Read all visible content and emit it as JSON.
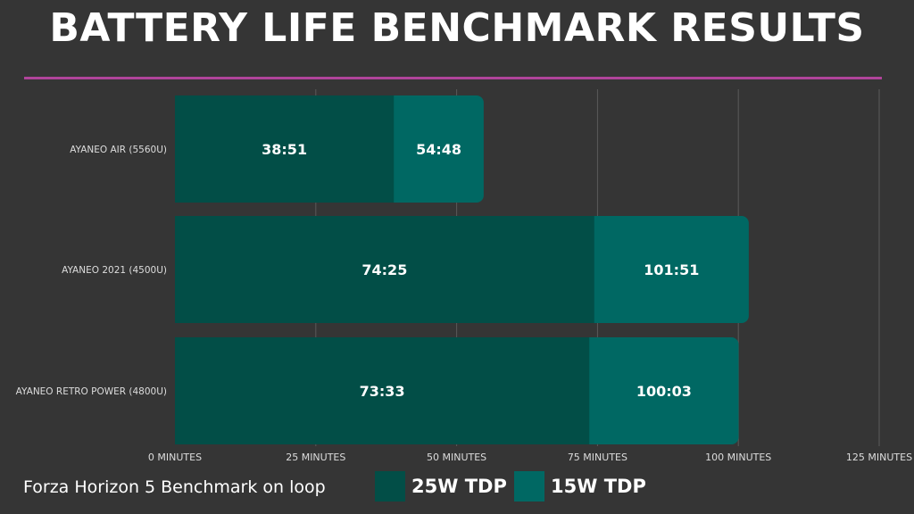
{
  "title": "BATTERY LIFE BENCHMARK RESULTS",
  "footer_note": "Forza Horizon 5 Benchmark on loop",
  "colors": {
    "background": "#353535",
    "accent_rule": "#b0449a",
    "series_25w": "#024e47",
    "series_15w": "#006863",
    "grid": "#5a5a5a",
    "text": "#ffffff",
    "axis_text": "#dddddd"
  },
  "legend": [
    {
      "label": "25W TDP",
      "color": "#024e47"
    },
    {
      "label": "15W TDP",
      "color": "#006863"
    }
  ],
  "chart_data": {
    "type": "bar",
    "orientation": "horizontal",
    "stacked": false,
    "categories": [
      "AYANEO AIR (5560U)",
      "AYANEO 2021 (4500U)",
      "AYANEO RETRO POWER (4800U)"
    ],
    "series": [
      {
        "name": "25W TDP",
        "values": [
          38.85,
          74.42,
          73.55
        ],
        "labels": [
          "38:51",
          "74:25",
          "73:33"
        ]
      },
      {
        "name": "15W TDP",
        "values": [
          54.8,
          101.85,
          100.05
        ],
        "labels": [
          "54:48",
          "101:51",
          "100:03"
        ]
      }
    ],
    "x_ticks": [
      0,
      25,
      50,
      75,
      100,
      125
    ],
    "x_tick_labels": [
      "0 MINUTES",
      "25 MINUTES",
      "50 MINUTES",
      "75 MINUTES",
      "100 MINUTES",
      "125 MINUTES"
    ],
    "xlim": [
      0,
      125
    ],
    "grid": true,
    "legend_position": "bottom"
  }
}
